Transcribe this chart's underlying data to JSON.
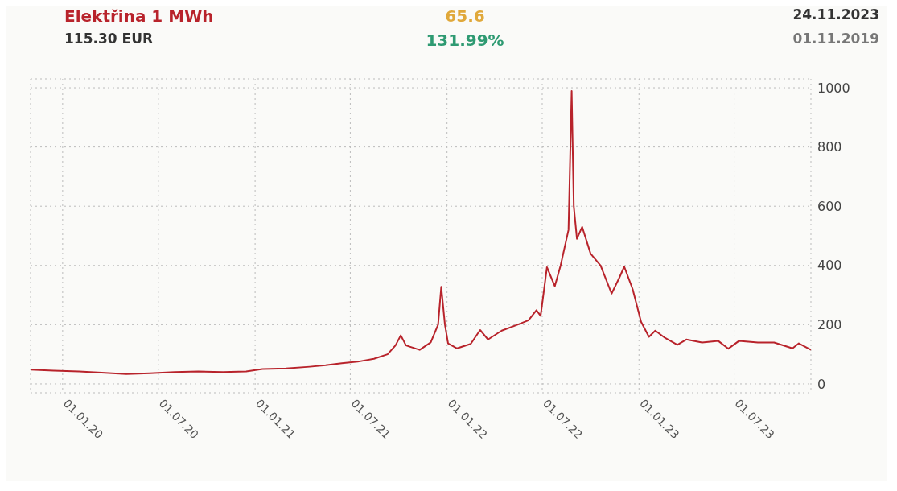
{
  "chart_data": {
    "type": "line",
    "title": "Elektřina 1 MWh",
    "subtitle": "115.30 EUR",
    "annotations": [
      "65.6",
      "131.99%",
      "24.11.2023",
      "01.11.2019"
    ],
    "x": [
      "2019-11-01",
      "2019-12-15",
      "2020-02-01",
      "2020-03-15",
      "2020-05-01",
      "2020-06-15",
      "2020-08-01",
      "2020-09-15",
      "2020-11-01",
      "2020-12-15",
      "2021-01-15",
      "2021-03-01",
      "2021-04-15",
      "2021-05-15",
      "2021-06-15",
      "2021-07-15",
      "2021-08-15",
      "2021-09-10",
      "2021-09-25",
      "2021-10-05",
      "2021-10-15",
      "2021-11-10",
      "2021-12-01",
      "2021-12-15",
      "2021-12-21",
      "2021-12-28",
      "2022-01-03",
      "2022-01-20",
      "2022-02-15",
      "2022-03-05",
      "2022-03-20",
      "2022-04-15",
      "2022-05-15",
      "2022-06-05",
      "2022-06-20",
      "2022-06-28",
      "2022-07-10",
      "2022-07-25",
      "2022-08-05",
      "2022-08-20",
      "2022-08-26",
      "2022-08-30",
      "2022-09-05",
      "2022-09-15",
      "2022-10-01",
      "2022-10-20",
      "2022-11-10",
      "2022-11-25",
      "2022-12-04",
      "2022-12-20",
      "2023-01-05",
      "2023-01-20",
      "2023-02-01",
      "2023-02-20",
      "2023-03-15",
      "2023-04-01",
      "2023-05-01",
      "2023-06-01",
      "2023-06-20",
      "2023-07-10",
      "2023-08-15",
      "2023-09-15",
      "2023-10-20",
      "2023-11-01",
      "2023-11-24"
    ],
    "series": [
      {
        "color": "#b8232b",
        "values": [
          48,
          45,
          42,
          38,
          33,
          36,
          40,
          42,
          40,
          42,
          50,
          52,
          58,
          63,
          70,
          75,
          85,
          100,
          130,
          164,
          130,
          115,
          140,
          200,
          328,
          200,
          137,
          120,
          135,
          182,
          150,
          180,
          200,
          215,
          249,
          230,
          394,
          330,
          400,
          520,
          989,
          600,
          490,
          530,
          440,
          400,
          305,
          360,
          396,
          320,
          210,
          159,
          180,
          155,
          132,
          150,
          140,
          145,
          119,
          145,
          140,
          140,
          120,
          137,
          115.3
        ]
      }
    ],
    "xlim": [
      "2019-11-01",
      "2023-11-24"
    ],
    "xticks": [
      {
        "value": "2020-01-01",
        "label": "01.01.20"
      },
      {
        "value": "2020-07-01",
        "label": "01.07.20"
      },
      {
        "value": "2021-01-01",
        "label": "01.01.21"
      },
      {
        "value": "2021-07-01",
        "label": "01.07.21"
      },
      {
        "value": "2022-01-01",
        "label": "01.01.22"
      },
      {
        "value": "2022-07-01",
        "label": "01.07.22"
      },
      {
        "value": "2023-01-01",
        "label": "01.01.23"
      },
      {
        "value": "2023-07-01",
        "label": "01.07.23"
      }
    ],
    "ylim": [
      -30,
      1030
    ],
    "yticks": [
      0,
      200,
      400,
      600,
      800,
      1000
    ],
    "grid": true,
    "legend": false,
    "marker": "none",
    "line_style": "solid"
  }
}
